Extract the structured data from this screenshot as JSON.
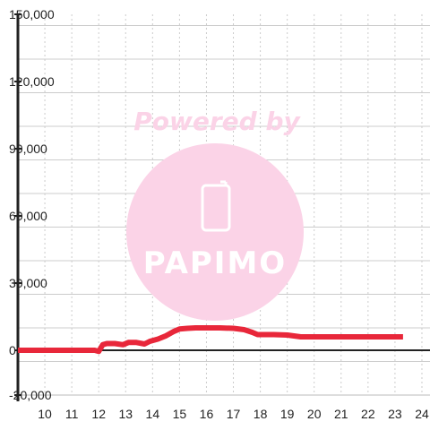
{
  "chart_data": {
    "type": "line",
    "title": "",
    "xlabel": "",
    "ylabel": "",
    "xlim": [
      9.0,
      24.3
    ],
    "ylim": [
      -20000,
      150000
    ],
    "grid": true,
    "legend": "none",
    "x_ticks": [
      10,
      11,
      12,
      13,
      14,
      15,
      16,
      17,
      18,
      19,
      20,
      21,
      22,
      23,
      24
    ],
    "x_tick_labels": [
      "10",
      "11",
      "12",
      "13",
      "14",
      "15",
      "16",
      "17",
      "18",
      "19",
      "20",
      "21",
      "22",
      "23",
      "24"
    ],
    "y_ticks": [
      -20000,
      0,
      30000,
      60000,
      90000,
      120000,
      150000
    ],
    "y_tick_labels": [
      "-20,000",
      "0",
      "30,000",
      "60,000",
      "90,000",
      "120,000",
      "150,000"
    ],
    "series": [
      {
        "color": "#e8273a",
        "x": [
          9.0,
          11.5,
          11.85,
          12.0,
          12.15,
          12.3,
          12.6,
          12.9,
          13.1,
          13.4,
          13.7,
          13.9,
          14.2,
          14.5,
          14.8,
          15.0,
          15.3,
          15.6,
          16.0,
          16.5,
          17.0,
          17.4,
          17.7,
          17.9,
          18.5,
          19.0,
          19.5,
          20.0,
          21.0,
          22.0,
          23.0,
          23.3
        ],
        "y": [
          0,
          0,
          0,
          -500,
          2500,
          3000,
          3000,
          2500,
          3500,
          3500,
          2800,
          4000,
          5000,
          6500,
          8500,
          9500,
          9800,
          10000,
          10000,
          10000,
          9800,
          9200,
          8000,
          7000,
          7000,
          6800,
          6000,
          6000,
          6000,
          6000,
          6000,
          6000
        ]
      }
    ],
    "colors": {
      "line": "#e8273a",
      "axis": "#222222",
      "grid_major": "#bbbbbb",
      "grid_minor": "#cccccc",
      "watermark": "#fbd3e7"
    }
  },
  "watermark": {
    "powered_text": "Powered by",
    "logo_text": "PAPIMO",
    "icon": "phone-icon"
  }
}
